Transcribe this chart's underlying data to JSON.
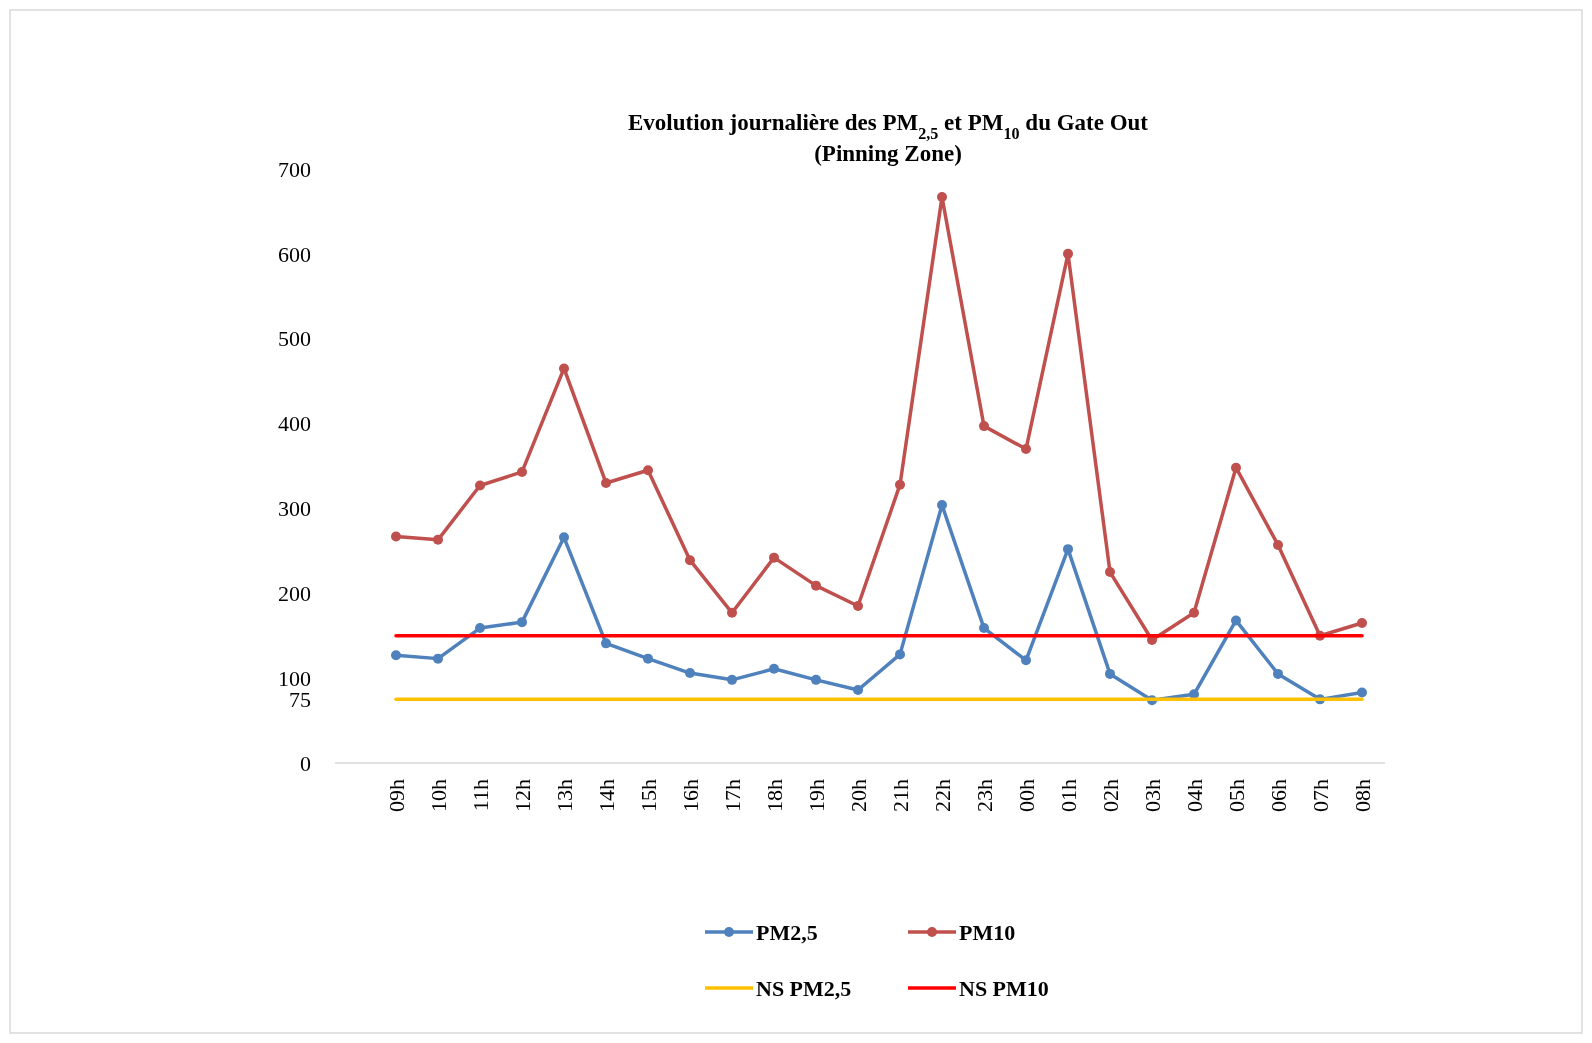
{
  "chart_data": {
    "type": "line",
    "title": "Evolution journalière des PM$_{2,5}$ et PM$_{10}$ du Gate Out",
    "subtitle": "(Pinning Zone)",
    "categories": [
      "09h",
      "10h",
      "11h",
      "12h",
      "13h",
      "14h",
      "15h",
      "16h",
      "17h",
      "18h",
      "19h",
      "20h",
      "21h",
      "22h",
      "23h",
      "00h",
      "01h",
      "02h",
      "03h",
      "04h",
      "05h",
      "06h",
      "07h",
      "08h"
    ],
    "series": [
      {
        "name": "PM2,5",
        "color": "#4f81bd",
        "marker": "circle",
        "values": [
          127,
          123,
          159,
          166,
          266,
          141,
          123,
          106,
          98,
          111,
          98,
          86,
          128,
          304,
          159,
          121,
          252,
          105,
          74,
          81,
          168,
          105,
          75,
          83
        ]
      },
      {
        "name": "PM10",
        "color": "#c0504d",
        "marker": "circle",
        "values": [
          267,
          263,
          327,
          343,
          465,
          330,
          345,
          239,
          177,
          242,
          209,
          185,
          328,
          667,
          397,
          370,
          600,
          225,
          145,
          177,
          348,
          257,
          150,
          165
        ]
      },
      {
        "name": "NS PM2,5",
        "color": "#ffc000",
        "marker": "none",
        "values": [
          75,
          75,
          75,
          75,
          75,
          75,
          75,
          75,
          75,
          75,
          75,
          75,
          75,
          75,
          75,
          75,
          75,
          75,
          75,
          75,
          75,
          75,
          75,
          75
        ]
      },
      {
        "name": "NS PM10",
        "color": "#ff0000",
        "marker": "none",
        "values": [
          150,
          150,
          150,
          150,
          150,
          150,
          150,
          150,
          150,
          150,
          150,
          150,
          150,
          150,
          150,
          150,
          150,
          150,
          150,
          150,
          150,
          150,
          150,
          150
        ]
      }
    ],
    "ylim": [
      0,
      700
    ],
    "yticks": [
      0,
      75,
      100,
      200,
      300,
      400,
      500,
      600,
      700
    ],
    "grid": false,
    "legend": "bottom",
    "line_style": "solid"
  }
}
